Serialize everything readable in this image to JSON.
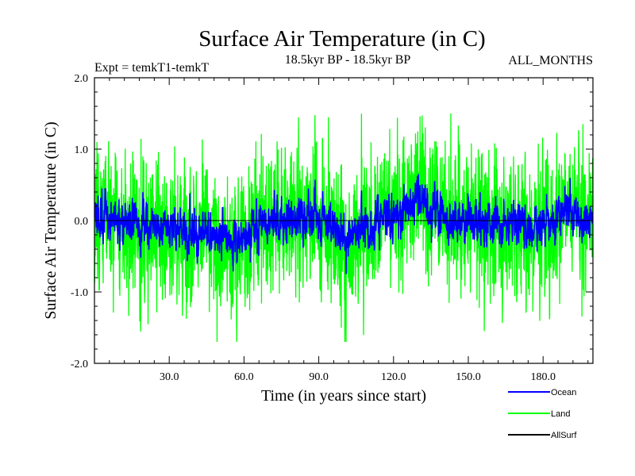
{
  "chart_data": {
    "type": "line",
    "title": "Surface Air Temperature (in C)",
    "subtitle_left": "Expt = temkT1-temkT",
    "subtitle_center": "18.5kyr BP - 18.5kyr BP",
    "subtitle_right": "ALL_MONTHS",
    "xlabel": "Time (in years since start)",
    "ylabel": "Surface Air Temperature (in C)",
    "xlim": [
      0,
      200
    ],
    "ylim": [
      -2.0,
      2.0
    ],
    "xticks": [
      30,
      60,
      90,
      120,
      150,
      180
    ],
    "xtick_labels": [
      "30.0",
      "60.0",
      "90.0",
      "120.0",
      "150.0",
      "180.0"
    ],
    "yticks": [
      -2.0,
      -1.0,
      0.0,
      1.0,
      2.0
    ],
    "ytick_labels": [
      "-2.0",
      "-1.0",
      "0.0",
      "1.0",
      "2.0"
    ],
    "zero_line": true,
    "legend_position": "bottom-right, outside plot",
    "n_points": 2400,
    "series": [
      {
        "name": "Land",
        "color": "#00ff00",
        "noise_amplitude": 0.45,
        "min": -1.7,
        "max": 1.5,
        "events": [
          {
            "x": 101,
            "value": -1.7
          },
          {
            "x": 99,
            "value": -1.5
          },
          {
            "x": 143,
            "value": 1.5
          },
          {
            "x": 196,
            "value": 1.35
          },
          {
            "x": 1,
            "value": 1.1
          },
          {
            "x": 131,
            "value": 1.1
          },
          {
            "x": 57,
            "value": -1.4
          }
        ]
      },
      {
        "name": "Ocean",
        "color": "#0000ff",
        "noise_amplitude": 0.14,
        "min": -0.75,
        "max": 0.65,
        "events": [
          {
            "x": 130,
            "value": 0.65
          },
          {
            "x": 101,
            "value": -0.75
          },
          {
            "x": 3,
            "value": 0.45
          }
        ]
      },
      {
        "name": "AllSurf",
        "color": "#000000",
        "visible_in_plot": false
      }
    ],
    "lowfreq_anomaly": [
      {
        "x": 0,
        "value": 0.0
      },
      {
        "x": 5,
        "value": 0.08
      },
      {
        "x": 12,
        "value": -0.05
      },
      {
        "x": 25,
        "value": -0.08
      },
      {
        "x": 40,
        "value": -0.12
      },
      {
        "x": 50,
        "value": -0.2
      },
      {
        "x": 57,
        "value": -0.3
      },
      {
        "x": 63,
        "value": -0.15
      },
      {
        "x": 70,
        "value": 0.05
      },
      {
        "x": 80,
        "value": -0.02
      },
      {
        "x": 88,
        "value": 0.1
      },
      {
        "x": 95,
        "value": -0.05
      },
      {
        "x": 100,
        "value": -0.25
      },
      {
        "x": 110,
        "value": 0.0
      },
      {
        "x": 120,
        "value": 0.05
      },
      {
        "x": 130,
        "value": 0.3
      },
      {
        "x": 140,
        "value": 0.05
      },
      {
        "x": 150,
        "value": 0.0
      },
      {
        "x": 165,
        "value": -0.05
      },
      {
        "x": 175,
        "value": -0.08
      },
      {
        "x": 185,
        "value": 0.05
      },
      {
        "x": 200,
        "value": 0.05
      }
    ]
  }
}
